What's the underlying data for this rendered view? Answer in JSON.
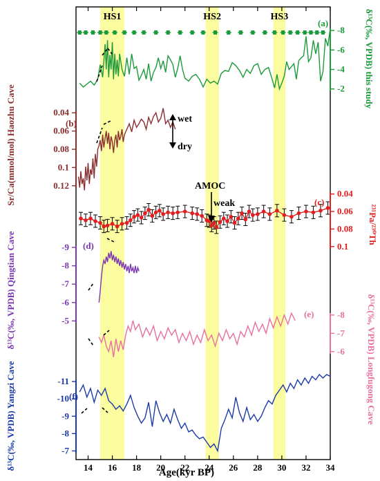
{
  "chart_data": {
    "type": "line",
    "title": "",
    "x_axis": {
      "label": "Age(kyr BP)",
      "range": [
        13,
        34
      ],
      "ticks": [
        "14",
        "16",
        "18",
        "20",
        "22",
        "24",
        "26",
        "28",
        "30",
        "32",
        "34"
      ],
      "tick_values": [
        14,
        16,
        18,
        20,
        22,
        24,
        26,
        28,
        30,
        32,
        34
      ]
    },
    "heinrich_stadials": [
      {
        "label": "HS1",
        "start": 15.0,
        "end": 17.0
      },
      {
        "label": "HS2",
        "start": 23.7,
        "end": 24.8
      },
      {
        "label": "HS3",
        "start": 29.3,
        "end": 30.3
      }
    ],
    "annotations": {
      "wet": "wet",
      "dry": "dry",
      "amoc": "AMOC",
      "weak": "weak"
    },
    "panels": [
      {
        "id": "a",
        "panel_label": "(a)",
        "axis_side": "right",
        "axis_label": "δ¹³C(‰, VPDB) this study",
        "y_inverted": true,
        "y_ticks": [
          "-8",
          "-6",
          "-4",
          "-2"
        ],
        "y_tick_values": [
          -8,
          -6,
          -4,
          -2
        ],
        "y_range": [
          -9,
          -1.2
        ],
        "color": "#1a9a3a",
        "dating_markers_x": [
          13.3,
          13.8,
          14.4,
          15.0,
          15.5,
          16.2,
          17.0,
          17.8,
          18.6,
          19.6,
          20.6,
          21.6,
          22.6,
          23.5,
          24.5,
          25.6,
          26.6,
          27.6,
          28.6,
          29.4,
          30.1,
          30.7,
          31.3,
          31.9,
          32.4,
          32.9,
          33.4
        ],
        "x": [
          13.3,
          13.6,
          13.9,
          14.2,
          14.5,
          14.8,
          15.0,
          15.2,
          15.4,
          15.5,
          15.6,
          15.7,
          15.8,
          15.9,
          16.0,
          16.1,
          16.2,
          16.3,
          16.4,
          16.5,
          16.6,
          16.8,
          17.0,
          17.2,
          17.4,
          17.6,
          17.8,
          18.0,
          18.2,
          18.4,
          18.6,
          18.8,
          19.0,
          19.2,
          19.4,
          19.6,
          19.8,
          20.0,
          20.2,
          20.4,
          20.6,
          20.8,
          21.0,
          21.2,
          21.4,
          21.6,
          21.8,
          22.0,
          22.3,
          22.6,
          22.9,
          23.2,
          23.5,
          23.8,
          24.1,
          24.4,
          24.7,
          25.0,
          25.3,
          25.6,
          25.9,
          26.2,
          26.5,
          26.8,
          27.1,
          27.4,
          27.7,
          28.0,
          28.3,
          28.6,
          28.9,
          29.2,
          29.4,
          29.6,
          29.8,
          30.0,
          30.2,
          30.4,
          30.6,
          30.8,
          31.0,
          31.2,
          31.4,
          31.6,
          31.8,
          32.0,
          32.2,
          32.4,
          32.6,
          32.8,
          33.0,
          33.2,
          33.4,
          33.6,
          33.8,
          34.0
        ],
        "y": [
          -2.6,
          -2.2,
          -2.5,
          -2.8,
          -2.4,
          -3.0,
          -4.5,
          -3.2,
          -6.6,
          -4.0,
          -7.0,
          -3.2,
          -5.5,
          -4.0,
          -6.8,
          -3.0,
          -5.6,
          -3.5,
          -5.0,
          -3.3,
          -5.6,
          -4.0,
          -3.3,
          -5.2,
          -3.5,
          -5.6,
          -4.1,
          -4.3,
          -2.9,
          -3.4,
          -4.0,
          -3.0,
          -4.6,
          -2.8,
          -3.7,
          -4.2,
          -5.2,
          -4.1,
          -4.9,
          -3.7,
          -5.4,
          -5.0,
          -4.5,
          -3.2,
          -4.1,
          -5.4,
          -4.0,
          -3.1,
          -2.8,
          -3.3,
          -3.5,
          -3.0,
          -2.2,
          -3.0,
          -2.6,
          -2.8,
          -2.5,
          -3.6,
          -3.9,
          -3.8,
          -4.7,
          -4.4,
          -3.9,
          -3.2,
          -4.0,
          -3.6,
          -4.4,
          -4.6,
          -3.5,
          -4.0,
          -4.2,
          -3.0,
          -2.1,
          -3.5,
          -2.0,
          -2.6,
          -3.3,
          -4.8,
          -4.0,
          -4.3,
          -4.6,
          -3.0,
          -4.9,
          -5.2,
          -5.4,
          -7.4,
          -4.8,
          -5.2,
          -7.0,
          -5.6,
          -6.8,
          -2.8,
          -3.8,
          -7.2,
          -6.4,
          -8.2
        ]
      },
      {
        "id": "b",
        "panel_label": "(b)",
        "axis_side": "left",
        "axis_label": "Sr/Ca(mmol/mol) Haozhu Cave",
        "y_inverted": true,
        "y_ticks": [
          "0.04",
          "0.06",
          "0.08",
          "0.1",
          "0.12"
        ],
        "y_tick_values": [
          0.04,
          0.06,
          0.08,
          0.1,
          0.12
        ],
        "y_range": [
          0.03,
          0.13
        ],
        "color": "#8b2e2e",
        "x": [
          13.2,
          13.3,
          13.4,
          13.5,
          13.6,
          13.7,
          13.8,
          13.9,
          14.0,
          14.1,
          14.2,
          14.3,
          14.4,
          14.5,
          14.6,
          14.7,
          14.8,
          14.9,
          15.0,
          15.1,
          15.2,
          15.3,
          15.4,
          15.5,
          15.6,
          15.7,
          15.8,
          15.9,
          16.0,
          16.1,
          16.2,
          16.3,
          16.4,
          16.5,
          16.6,
          16.7,
          16.8,
          16.9,
          17.0,
          17.2,
          17.4,
          17.6,
          17.8,
          18.0,
          18.2,
          18.4,
          18.6,
          18.8,
          19.0,
          19.2,
          19.4,
          19.6,
          19.8,
          20.0,
          20.2,
          20.4,
          20.6,
          20.8,
          21.0,
          21.2
        ],
        "y": [
          0.11,
          0.122,
          0.104,
          0.118,
          0.112,
          0.125,
          0.099,
          0.114,
          0.095,
          0.118,
          0.102,
          0.108,
          0.09,
          0.112,
          0.085,
          0.099,
          0.08,
          0.076,
          0.07,
          0.082,
          0.064,
          0.078,
          0.068,
          0.06,
          0.074,
          0.062,
          0.08,
          0.066,
          0.072,
          0.084,
          0.07,
          0.064,
          0.078,
          0.06,
          0.07,
          0.066,
          0.058,
          0.072,
          0.064,
          0.058,
          0.052,
          0.061,
          0.048,
          0.056,
          0.052,
          0.047,
          0.05,
          0.058,
          0.045,
          0.052,
          0.044,
          0.04,
          0.05,
          0.046,
          0.035,
          0.052,
          0.048,
          0.056,
          0.05,
          0.058
        ]
      },
      {
        "id": "c",
        "panel_label": "(c)",
        "axis_side": "right",
        "axis_label": "²³¹Pa/²³⁰Th",
        "y_inverted": true,
        "y_ticks": [
          "0.04",
          "0.06",
          "0.08",
          "0.1"
        ],
        "y_tick_values": [
          0.04,
          0.06,
          0.08,
          0.1
        ],
        "y_range": [
          0.03,
          0.112
        ],
        "color": "#e02020",
        "x": [
          13.4,
          13.8,
          14.2,
          14.6,
          15.0,
          15.3,
          15.6,
          16.0,
          16.4,
          16.8,
          17.2,
          17.5,
          17.8,
          18.1,
          18.4,
          18.7,
          19.0,
          19.3,
          19.6,
          19.9,
          20.2,
          20.6,
          21.0,
          21.4,
          22.0,
          22.6,
          23.0,
          23.4,
          23.8,
          24.0,
          24.2,
          24.4,
          24.6,
          24.9,
          25.2,
          25.5,
          25.8,
          26.1,
          26.4,
          26.7,
          27.0,
          27.3,
          27.6,
          28.0,
          28.5,
          29.0,
          29.6,
          30.2,
          30.8,
          31.4,
          32.0,
          32.6,
          33.2,
          33.8
        ],
        "y": [
          0.068,
          0.07,
          0.068,
          0.071,
          0.073,
          0.077,
          0.076,
          0.074,
          0.077,
          0.074,
          0.073,
          0.07,
          0.066,
          0.064,
          0.067,
          0.062,
          0.058,
          0.065,
          0.061,
          0.059,
          0.063,
          0.061,
          0.062,
          0.061,
          0.06,
          0.062,
          0.063,
          0.065,
          0.07,
          0.071,
          0.076,
          0.073,
          0.078,
          0.072,
          0.068,
          0.071,
          0.066,
          0.073,
          0.068,
          0.062,
          0.069,
          0.06,
          0.064,
          0.063,
          0.06,
          0.063,
          0.059,
          0.064,
          0.066,
          0.062,
          0.06,
          0.061,
          0.059,
          0.056
        ]
      },
      {
        "id": "d",
        "panel_label": "(d)",
        "axis_side": "left",
        "axis_label": "δ¹³C(‰, VPDB) Qingtian Cave",
        "y_inverted": true,
        "y_ticks": [
          "-9",
          "-8",
          "-7",
          "-6",
          "-5"
        ],
        "y_tick_values": [
          -9,
          -8,
          -7,
          -6,
          -5
        ],
        "y_range": [
          -9.6,
          -4.6
        ],
        "color": "#7a36b0",
        "x": [
          14.9,
          15.0,
          15.1,
          15.2,
          15.3,
          15.4,
          15.5,
          15.6,
          15.7,
          15.8,
          15.9,
          16.0,
          16.1,
          16.2,
          16.3,
          16.4,
          16.5,
          16.6,
          16.7,
          16.8,
          16.9,
          17.0,
          17.1,
          17.2,
          17.3,
          17.4,
          17.5,
          17.6,
          17.7,
          17.8,
          17.9,
          18.0,
          18.1,
          18.2
        ],
        "y": [
          -6.0,
          -6.6,
          -7.4,
          -8.0,
          -8.3,
          -8.1,
          -8.5,
          -8.2,
          -8.7,
          -8.4,
          -8.8,
          -8.3,
          -8.6,
          -8.2,
          -8.5,
          -8.1,
          -8.4,
          -8.0,
          -8.3,
          -7.9,
          -8.2,
          -7.8,
          -8.1,
          -7.7,
          -8.0,
          -7.6,
          -8.1,
          -7.7,
          -7.9,
          -7.6,
          -8.0,
          -7.6,
          -7.9,
          -7.7
        ]
      },
      {
        "id": "e",
        "panel_label": "(e)",
        "axis_side": "right",
        "axis_label": "δ¹³C(‰, VPDB) Longfugong Cave",
        "y_inverted": true,
        "y_ticks": [
          "-8",
          "-7",
          "-6"
        ],
        "y_tick_values": [
          -8,
          -7,
          -6
        ],
        "y_range": [
          -8.9,
          -5.2
        ],
        "color": "#e870a0",
        "x": [
          14.9,
          15.1,
          15.3,
          15.5,
          15.7,
          15.9,
          16.1,
          16.3,
          16.5,
          16.7,
          16.9,
          17.1,
          17.3,
          17.5,
          17.7,
          17.9,
          18.2,
          18.5,
          18.8,
          19.1,
          19.4,
          19.7,
          20.0,
          20.3,
          20.6,
          20.9,
          21.2,
          21.5,
          21.8,
          22.1,
          22.4,
          22.7,
          23.0,
          23.3,
          23.6,
          23.9,
          24.2,
          24.5,
          24.8,
          25.1,
          25.4,
          25.7,
          26.0,
          26.3,
          26.6,
          26.9,
          27.2,
          27.5,
          27.8,
          28.1,
          28.4,
          28.7,
          29.0,
          29.3,
          29.6,
          29.9,
          30.2,
          30.5,
          30.8,
          31.1
        ],
        "y": [
          -6.8,
          -6.5,
          -6.9,
          -6.3,
          -6.0,
          -6.6,
          -5.7,
          -6.7,
          -6.0,
          -6.6,
          -6.1,
          -6.9,
          -7.4,
          -7.1,
          -7.7,
          -7.2,
          -7.5,
          -6.8,
          -7.3,
          -6.9,
          -7.4,
          -6.6,
          -7.1,
          -6.7,
          -7.3,
          -6.9,
          -7.2,
          -6.5,
          -7.0,
          -6.6,
          -7.1,
          -6.4,
          -6.9,
          -6.5,
          -7.2,
          -6.6,
          -6.9,
          -6.3,
          -7.0,
          -6.6,
          -7.2,
          -6.7,
          -7.0,
          -6.4,
          -7.1,
          -6.8,
          -7.4,
          -6.9,
          -7.6,
          -7.1,
          -7.5,
          -7.0,
          -7.8,
          -7.3,
          -7.9,
          -7.4,
          -8.0,
          -7.5,
          -8.1,
          -7.7
        ]
      },
      {
        "id": "f",
        "panel_label": "(f)",
        "axis_side": "left",
        "axis_label": "δ¹³C(‰, VPDB) Yangzi Cave",
        "y_inverted": true,
        "y_ticks": [
          "-11",
          "-10",
          "-9",
          "-8",
          "-7"
        ],
        "y_tick_values": [
          -11,
          -10,
          -9,
          -8,
          -7
        ],
        "y_range": [
          -11.6,
          -6.7
        ],
        "color": "#1a3aa8",
        "x": [
          13.3,
          13.6,
          13.9,
          14.2,
          14.5,
          14.8,
          15.1,
          15.4,
          15.7,
          16.0,
          16.3,
          16.6,
          16.9,
          17.2,
          17.5,
          17.8,
          18.1,
          18.4,
          18.7,
          19.0,
          19.3,
          19.6,
          19.9,
          20.2,
          20.5,
          20.8,
          21.1,
          21.4,
          21.7,
          22.0,
          22.3,
          22.6,
          22.9,
          23.2,
          23.5,
          23.8,
          24.1,
          24.4,
          24.7,
          25.0,
          25.3,
          25.6,
          25.9,
          26.2,
          26.5,
          26.8,
          27.1,
          27.4,
          27.7,
          28.0,
          28.3,
          28.6,
          28.9,
          29.2,
          29.5,
          29.8,
          30.1,
          30.4,
          30.7,
          31.0,
          31.3,
          31.6,
          31.9,
          32.2,
          32.5,
          32.8,
          33.1,
          33.4,
          33.7,
          34.0
        ],
        "y": [
          -10.4,
          -10.8,
          -10.1,
          -10.6,
          -9.8,
          -10.5,
          -10.2,
          -10.6,
          -9.9,
          -9.7,
          -9.4,
          -9.6,
          -9.3,
          -9.7,
          -10.2,
          -9.5,
          -9.0,
          -8.6,
          -8.9,
          -9.8,
          -8.4,
          -9.9,
          -9.2,
          -8.7,
          -9.1,
          -8.6,
          -9.4,
          -8.8,
          -8.3,
          -8.6,
          -8.1,
          -8.2,
          -7.9,
          -7.7,
          -7.8,
          -7.5,
          -7.2,
          -7.4,
          -7.0,
          -8.3,
          -8.8,
          -9.4,
          -8.9,
          -10.1,
          -9.2,
          -8.7,
          -9.5,
          -8.8,
          -9.1,
          -8.7,
          -9.0,
          -9.5,
          -9.9,
          -9.7,
          -10.2,
          -10.5,
          -10.8,
          -10.4,
          -10.9,
          -10.6,
          -11.1,
          -10.8,
          -11.2,
          -10.9,
          -11.3,
          -11.1,
          -11.4,
          -11.2,
          -11.4,
          -11.3
        ]
      }
    ]
  }
}
